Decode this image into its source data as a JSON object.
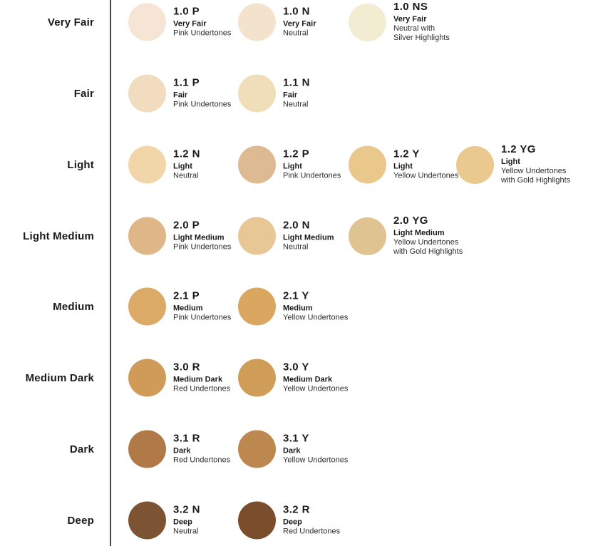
{
  "chart": {
    "divider_color": "#474747",
    "text_color": "#1a1a1a",
    "rows": [
      {
        "label": "Very Fair",
        "shades": [
          {
            "code": "1.0 P",
            "name": "Very Fair",
            "undertone_lines": [
              "Pink Undertones"
            ],
            "color": "#f6e4d4"
          },
          {
            "code": "1.0 N",
            "name": "Very Fair",
            "undertone_lines": [
              "Neutral"
            ],
            "color": "#f3e3cc"
          },
          {
            "code": "1.0 NS",
            "name": "Very Fair",
            "undertone_lines": [
              "Neutral with",
              "Silver Highlights"
            ],
            "color": "#f2ecd2"
          }
        ]
      },
      {
        "label": "Fair",
        "shades": [
          {
            "code": "1.1 P",
            "name": "Fair",
            "undertone_lines": [
              "Pink Undertones"
            ],
            "color": "#f2dcbf"
          },
          {
            "code": "1.1 N",
            "name": "Fair",
            "undertone_lines": [
              "Neutral"
            ],
            "color": "#f0ddba"
          }
        ]
      },
      {
        "label": "Light",
        "shades": [
          {
            "code": "1.2 N",
            "name": "Light",
            "undertone_lines": [
              "Neutral"
            ],
            "color": "#f0d6a8"
          },
          {
            "code": "1.2 P",
            "name": "Light",
            "undertone_lines": [
              "Pink Undertones"
            ],
            "color": "#deba92"
          },
          {
            "code": "1.2 Y",
            "name": "Light",
            "undertone_lines": [
              "Yellow Undertones"
            ],
            "color": "#eac88c"
          },
          {
            "code": "1.2 YG",
            "name": "Light",
            "undertone_lines": [
              "Yellow Undertones",
              "with Gold Highlights"
            ],
            "color": "#eac98e"
          }
        ]
      },
      {
        "label": "Light Medium",
        "shades": [
          {
            "code": "2.0 P",
            "name": "Light Medium",
            "undertone_lines": [
              "Pink Undertones"
            ],
            "color": "#dfb687"
          },
          {
            "code": "2.0 N",
            "name": "Light Medium",
            "undertone_lines": [
              "Neutral"
            ],
            "color": "#e6c795"
          },
          {
            "code": "2.0 YG",
            "name": "Light Medium",
            "undertone_lines": [
              "Yellow Undertones",
              "with Gold Highlights"
            ],
            "color": "#dfc492"
          }
        ]
      },
      {
        "label": "Medium",
        "shades": [
          {
            "code": "2.1 P",
            "name": "Medium",
            "undertone_lines": [
              "Pink Undertones"
            ],
            "color": "#dcaa67"
          },
          {
            "code": "2.1 Y",
            "name": "Medium",
            "undertone_lines": [
              "Yellow Undertones"
            ],
            "color": "#d9a75f"
          }
        ]
      },
      {
        "label": "Medium Dark",
        "shades": [
          {
            "code": "3.0 R",
            "name": "Medium Dark",
            "undertone_lines": [
              "Red Undertones"
            ],
            "color": "#d09b59"
          },
          {
            "code": "3.0 Y",
            "name": "Medium Dark",
            "undertone_lines": [
              "Yellow Undertones"
            ],
            "color": "#cf9d58"
          }
        ]
      },
      {
        "label": "Dark",
        "shades": [
          {
            "code": "3.1 R",
            "name": "Dark",
            "undertone_lines": [
              "Red Undertones"
            ],
            "color": "#b27948"
          },
          {
            "code": "3.1 Y",
            "name": "Dark",
            "undertone_lines": [
              "Yellow Undertones"
            ],
            "color": "#bd8750"
          }
        ]
      },
      {
        "label": "Deep",
        "shades": [
          {
            "code": "3.2 N",
            "name": "Deep",
            "undertone_lines": [
              "Neutral"
            ],
            "color": "#7d5433"
          },
          {
            "code": "3.2 R",
            "name": "Deep",
            "undertone_lines": [
              "Red Undertones"
            ],
            "color": "#7a4d2c"
          }
        ]
      }
    ]
  }
}
